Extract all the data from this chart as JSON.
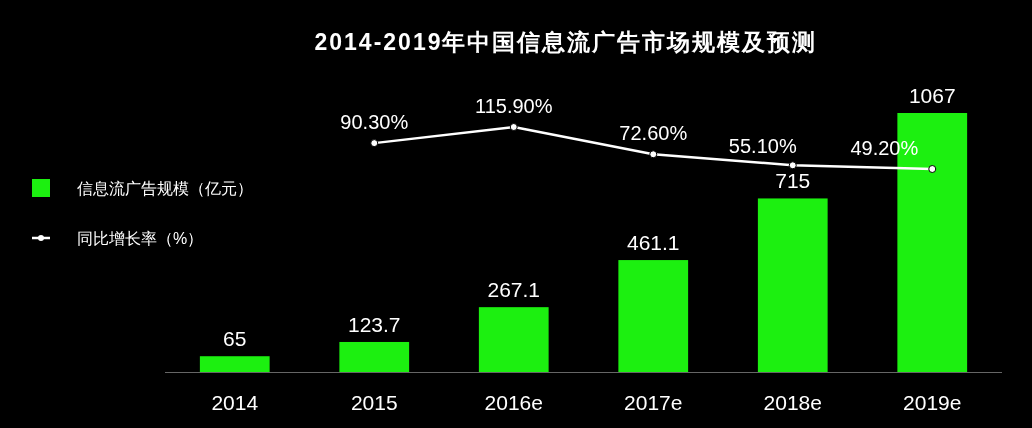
{
  "chart_data": {
    "type": "bar",
    "title": "2014-2019年中国信息流广告市场规模及预测",
    "legend": "left",
    "categories": [
      "2014",
      "2015",
      "2016e",
      "2017e",
      "2018e",
      "2019e"
    ],
    "series": [
      {
        "name": "信息流广告规模（亿元）",
        "color": "#1cf010",
        "values": [
          65,
          123.7,
          267.1,
          461.1,
          715,
          1067
        ],
        "value_labels": [
          "65",
          "123.7",
          "267.1",
          "461.1",
          "715",
          "1067"
        ]
      },
      {
        "name": "同比增长率（%）",
        "type": "line",
        "axis": "y2",
        "color": "#ffffff",
        "marker": "circle",
        "values": [
          null,
          90.3,
          115.9,
          72.6,
          55.1,
          49.2
        ],
        "value_labels": [
          null,
          "90.30%",
          "115.90%",
          "72.60%",
          "55.10%",
          "49.20%"
        ]
      }
    ]
  }
}
